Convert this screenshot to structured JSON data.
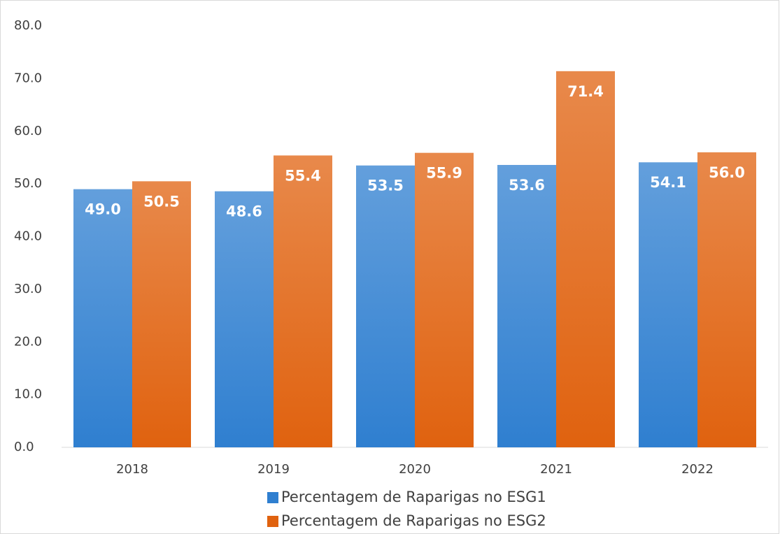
{
  "chart_data": {
    "type": "bar",
    "categories": [
      "2018",
      "2019",
      "2020",
      "2021",
      "2022"
    ],
    "series": [
      {
        "name": "Percentagem de Raparigas no ESG1",
        "color": "#2f7fd0",
        "values": [
          49,
          48.6,
          53.5,
          53.6,
          54.1
        ],
        "value_labels": [
          "49.0",
          "48.6",
          "53.5",
          "53.6",
          "54.1"
        ]
      },
      {
        "name": "Percentagem de Raparigas no ESG2",
        "color": "#e0620f",
        "values": [
          50.5,
          55.4,
          55.9,
          71.4,
          56
        ],
        "value_labels": [
          "50.5",
          "55.4",
          "55.9",
          "71.4",
          "56.0"
        ]
      }
    ],
    "ylim": [
      0,
      80
    ],
    "yticks": [
      {
        "value": 0,
        "label": "0.0"
      },
      {
        "value": 10,
        "label": "10.0"
      },
      {
        "value": 20,
        "label": "20.0"
      },
      {
        "value": 30,
        "label": "30.0"
      },
      {
        "value": 40,
        "label": "40.0"
      },
      {
        "value": 50,
        "label": "50.0"
      },
      {
        "value": 60,
        "label": "60.0"
      },
      {
        "value": 70,
        "label": "70.0"
      },
      {
        "value": 80,
        "label": "80.0"
      }
    ],
    "grid": false
  }
}
